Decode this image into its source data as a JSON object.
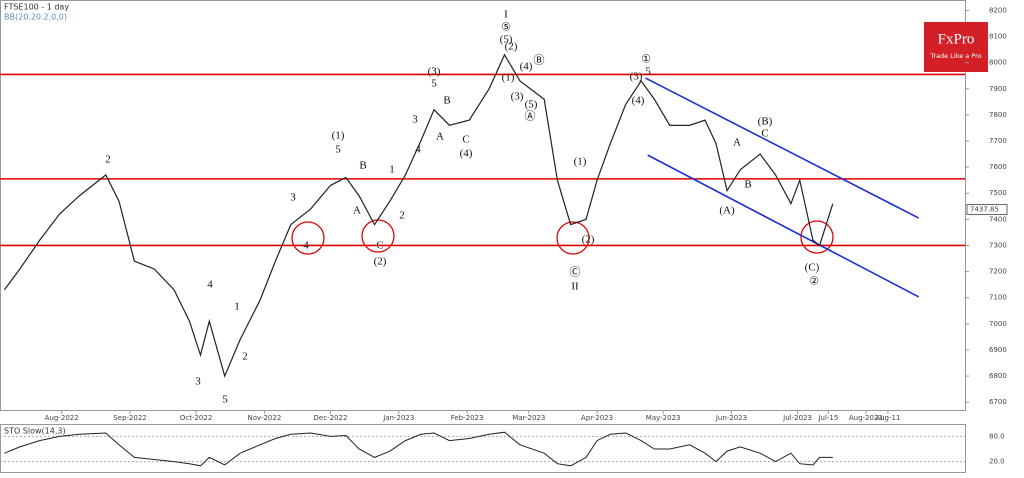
{
  "chart_data": {
    "type": "line",
    "title": "FTSE100 - 1 day",
    "subtitle": "BB(20,20.2,0,0)",
    "brand": "FxPro",
    "tagline": "Trade Like a Pro",
    "x": [
      2,
      9,
      18,
      27,
      36,
      48,
      54,
      61,
      70,
      79,
      86,
      91,
      95,
      102,
      109,
      118,
      125,
      132,
      141,
      150,
      157,
      163,
      170,
      177,
      184,
      191,
      197,
      204,
      213,
      222,
      229,
      236,
      247,
      253,
      259,
      266,
      271,
      277,
      284,
      291,
      297,
      304,
      313,
      320,
      325,
      330,
      336,
      345,
      352,
      359,
      363,
      369,
      372,
      378
    ],
    "series": [
      {
        "name": "FTSE100",
        "color": "#222222",
        "values": [
          7130,
          7210,
          7320,
          7420,
          7490,
          7570,
          7470,
          7240,
          7210,
          7130,
          7010,
          6880,
          7010,
          6800,
          6940,
          7090,
          7240,
          7380,
          7440,
          7530,
          7560,
          7490,
          7380,
          7470,
          7570,
          7700,
          7820,
          7760,
          7780,
          7900,
          8030,
          7930,
          7860,
          7550,
          7380,
          7400,
          7550,
          7690,
          7840,
          7930,
          7860,
          7760,
          7760,
          7780,
          7690,
          7510,
          7590,
          7650,
          7570,
          7460,
          7550,
          7320,
          7300,
          7460
        ]
      }
    ],
    "last_price": 7437.85,
    "levels": [
      7955,
      7555,
      7300
    ],
    "level_color": "#e00000",
    "channel_color": "#1f2fd6",
    "channel_lines": [
      {
        "x": [
          293,
          417
        ],
        "y": [
          7941,
          7405
        ]
      },
      {
        "x": [
          294,
          417
        ],
        "y": [
          7646,
          7103
        ]
      }
    ],
    "annotations": [
      "2",
      "3",
      "4",
      "5",
      "1",
      "2",
      "3",
      "4",
      "A",
      "B",
      "C",
      "(2)",
      "1",
      "2",
      "(1)",
      "5",
      "3",
      "4",
      "5",
      "(3)",
      "A",
      "B",
      "C",
      "(4)",
      "I",
      "⑤",
      "(5)",
      "(2)",
      "(4)",
      "Ⓑ",
      "(1)",
      "(3)",
      "(5)",
      "Ⓐ",
      "(1)",
      "(2)",
      "Ⓒ",
      "II",
      "①",
      "(3)",
      "5",
      "(4)",
      "(B)",
      "C",
      "A",
      "B",
      "(A)",
      "(C)",
      "②"
    ],
    "xlim": [
      0,
      438
    ],
    "xticks": [
      {
        "value": 28,
        "label": "Aug-2022"
      },
      {
        "value": 59,
        "label": "Sep-2022"
      },
      {
        "value": 89,
        "label": "Oct-2022"
      },
      {
        "value": 120,
        "label": "Nov-2022"
      },
      {
        "value": 150,
        "label": "Dec-2022"
      },
      {
        "value": 181,
        "label": "Jan-2023"
      },
      {
        "value": 212,
        "label": "Feb-2023"
      },
      {
        "value": 240,
        "label": "Mar-2023"
      },
      {
        "value": 271,
        "label": "Apr-2023"
      },
      {
        "value": 301,
        "label": "May-2023"
      },
      {
        "value": 332,
        "label": "Jun-2023"
      },
      {
        "value": 362,
        "label": "Jul-2023"
      },
      {
        "value": 376,
        "label": "Jul-15"
      },
      {
        "value": 393,
        "label": "Aug-2023"
      },
      {
        "value": 403,
        "label": "Aug-11"
      }
    ],
    "ylim": [
      6670,
      8240
    ],
    "yticks": [
      6700,
      6800,
      6900,
      7000,
      7100,
      7200,
      7300,
      7400,
      7500,
      7600,
      7700,
      7800,
      7900,
      8000,
      8100,
      8200
    ],
    "oscillator": {
      "title": "STO Slow(14,3)",
      "color": "#222222",
      "values": [
        40,
        55,
        70,
        80,
        85,
        88,
        60,
        30,
        25,
        20,
        15,
        10,
        30,
        12,
        40,
        60,
        75,
        85,
        88,
        80,
        82,
        50,
        30,
        45,
        70,
        85,
        88,
        70,
        75,
        85,
        90,
        60,
        40,
        15,
        10,
        30,
        70,
        85,
        88,
        70,
        50,
        50,
        60,
        40,
        20,
        45,
        55,
        40,
        20,
        40,
        15,
        12,
        30,
        30
      ],
      "ylim": [
        0,
        100
      ],
      "yticks": [
        {
          "value": 80,
          "label": "80.0"
        },
        {
          "value": 20,
          "label": "20.0"
        }
      ]
    }
  }
}
